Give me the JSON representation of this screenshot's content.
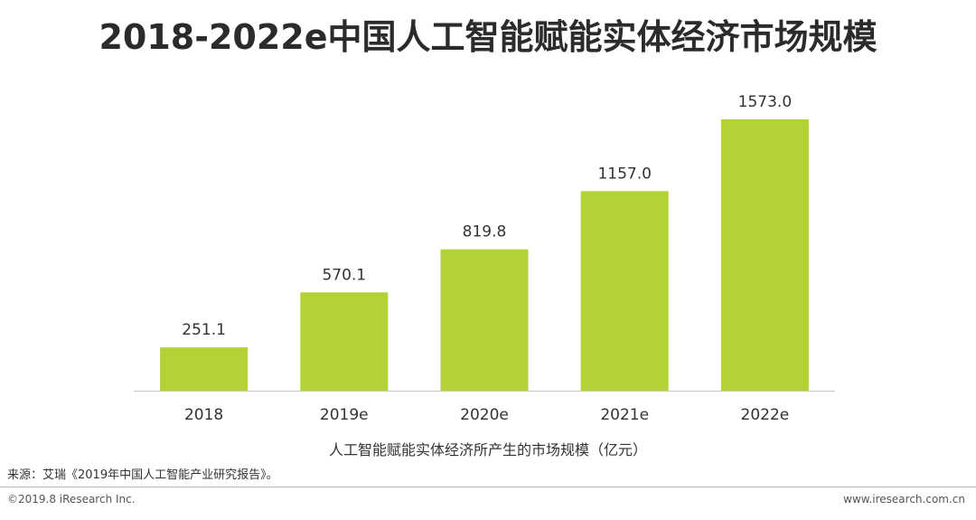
{
  "title": "2018-2022e中国人工智能赋能实体经济市场规模",
  "legend_label": "人工智能赋能实体经济所产生的市场规模（亿元）",
  "source": "来源：艾瑞《2019年中国人工智能产业研究报告》。",
  "copyright": "©2019.8 iResearch Inc.",
  "website": "www.iresearch.com.cn",
  "colors": {
    "bar": "#b2d235",
    "axis": "#c8c8c8"
  },
  "chart_data": {
    "type": "bar",
    "categories": [
      "2018",
      "2019e",
      "2020e",
      "2021e",
      "2022e"
    ],
    "values": [
      251.1,
      570.1,
      819.8,
      1157.0,
      1573.0
    ],
    "value_labels": [
      "251.1",
      "570.1",
      "819.8",
      "1157.0",
      "1573.0"
    ],
    "title": "",
    "xlabel": "",
    "ylabel": "",
    "ylim": [
      0,
      1573.0
    ],
    "grid": false,
    "legend": "bottom"
  }
}
